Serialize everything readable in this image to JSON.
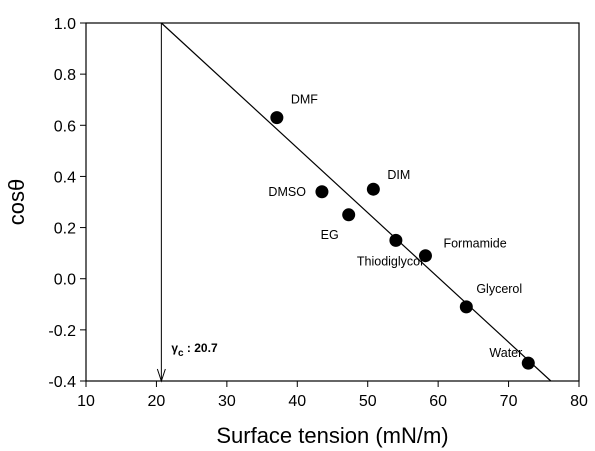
{
  "chart_data": {
    "type": "scatter",
    "title": "",
    "xlabel": "Surface tension (mN/m)",
    "ylabel": "cosθ",
    "xlim": [
      10,
      80
    ],
    "ylim": [
      -0.4,
      1.0
    ],
    "xticks": [
      "10",
      "20",
      "30",
      "40",
      "50",
      "60",
      "70",
      "80"
    ],
    "yticks": [
      "-0.4",
      "-0.2",
      "0.0",
      "0.2",
      "0.4",
      "0.6",
      "0.8",
      "1.0"
    ],
    "grid": false,
    "points": [
      {
        "label": "DMF",
        "x": 37.1,
        "y": 0.63
      },
      {
        "label": "DMSO",
        "x": 43.5,
        "y": 0.34
      },
      {
        "label": "DIM",
        "x": 50.8,
        "y": 0.35
      },
      {
        "label": "EG",
        "x": 47.3,
        "y": 0.25
      },
      {
        "label": "Thiodiglycol",
        "x": 54.0,
        "y": 0.15
      },
      {
        "label": "Formamide",
        "x": 58.2,
        "y": 0.09
      },
      {
        "label": "Glycerol",
        "x": 64.0,
        "y": -0.11
      },
      {
        "label": "Water",
        "x": 72.8,
        "y": -0.33
      }
    ],
    "fit_line": {
      "x": [
        20.7,
        76.0
      ],
      "y": [
        1.0,
        -0.4
      ]
    },
    "critical_marker": {
      "x": 20.7,
      "text": "γc : 20.7"
    }
  }
}
